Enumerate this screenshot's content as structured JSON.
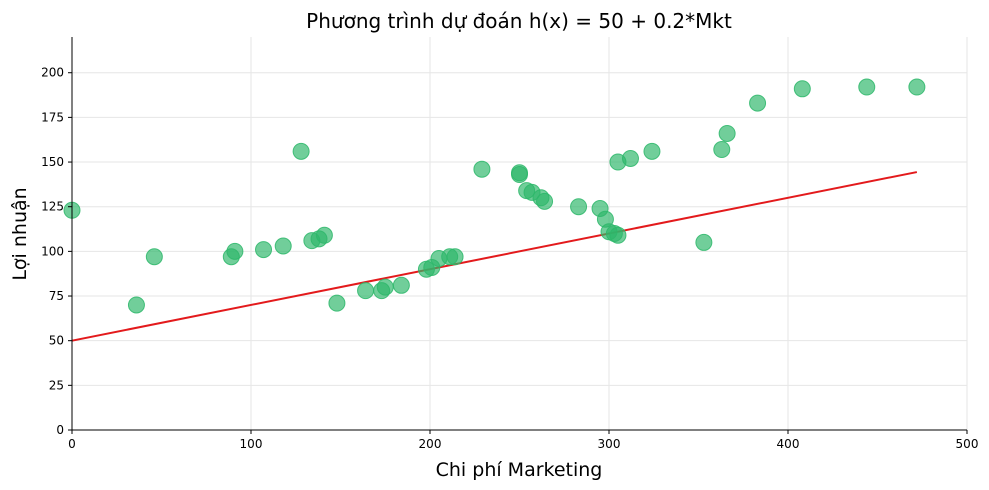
{
  "chart_data": {
    "type": "scatter",
    "title": "Phương trình dự đoán h(x) = 50 + 0.2*Mkt",
    "xlabel": "Chi phí Marketing",
    "ylabel": "Lợi nhuận",
    "xlim": [
      0,
      500
    ],
    "ylim": [
      0,
      220
    ],
    "xticks": [
      0,
      100,
      200,
      300,
      400,
      500
    ],
    "yticks": [
      0,
      25,
      50,
      75,
      100,
      125,
      150,
      175,
      200
    ],
    "grid": true,
    "colors": {
      "points": "#2db76a",
      "line": "#e31a1c",
      "grid": "#e6e6e6",
      "axis": "#000000"
    },
    "series": [
      {
        "kind": "scatter",
        "points": [
          [
            0,
            123
          ],
          [
            36,
            70
          ],
          [
            46,
            97
          ],
          [
            89,
            97
          ],
          [
            91,
            100
          ],
          [
            107,
            101
          ],
          [
            118,
            103
          ],
          [
            128,
            156
          ],
          [
            134,
            106
          ],
          [
            138,
            107
          ],
          [
            141,
            109
          ],
          [
            148,
            71
          ],
          [
            164,
            78
          ],
          [
            173,
            78
          ],
          [
            175,
            80
          ],
          [
            184,
            81
          ],
          [
            198,
            90
          ],
          [
            201,
            91
          ],
          [
            205,
            96
          ],
          [
            211,
            97
          ],
          [
            214,
            97
          ],
          [
            229,
            146
          ],
          [
            250,
            143
          ],
          [
            250,
            144
          ],
          [
            254,
            134
          ],
          [
            257,
            133
          ],
          [
            262,
            130
          ],
          [
            264,
            128
          ],
          [
            283,
            125
          ],
          [
            295,
            124
          ],
          [
            298,
            118
          ],
          [
            300,
            111
          ],
          [
            303,
            110
          ],
          [
            305,
            109
          ],
          [
            305,
            150
          ],
          [
            312,
            152
          ],
          [
            324,
            156
          ],
          [
            353,
            105
          ],
          [
            363,
            157
          ],
          [
            366,
            166
          ],
          [
            383,
            183
          ],
          [
            408,
            191
          ],
          [
            444,
            192
          ],
          [
            472,
            192
          ]
        ]
      },
      {
        "kind": "line",
        "intercept": 50,
        "slope": 0.2,
        "x_range": [
          0,
          472
        ]
      }
    ]
  }
}
